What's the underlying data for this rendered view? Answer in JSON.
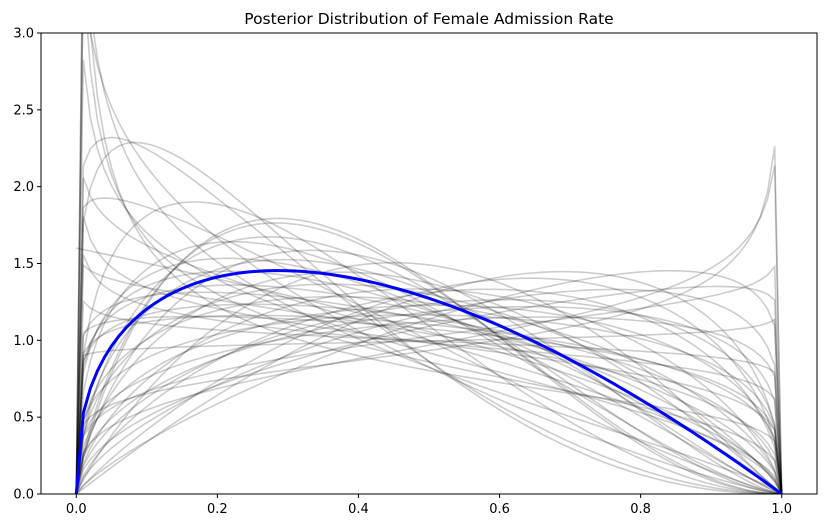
{
  "chart_data": {
    "type": "line",
    "title": "Posterior Distribution of Female Admission Rate",
    "xlabel": "",
    "ylabel": "",
    "xlim": [
      -0.05,
      1.05
    ],
    "ylim": [
      0,
      3
    ],
    "x_ticks": [
      0.0,
      0.2,
      0.4,
      0.6,
      0.8,
      1.0
    ],
    "x_tick_labels": [
      "0.0",
      "0.2",
      "0.4",
      "0.6",
      "0.8",
      "1.0"
    ],
    "y_ticks": [
      0.0,
      0.5,
      1.0,
      1.5,
      2.0,
      2.5,
      3.0
    ],
    "y_tick_labels": [
      "0.0",
      "0.5",
      "1.0",
      "1.5",
      "2.0",
      "2.5",
      "3.0"
    ],
    "grid": false,
    "legend": "none",
    "colors": {
      "samples": "#000000",
      "mean": "#0000ff"
    },
    "mean_curve": {
      "distribution": "beta",
      "a": 1.4,
      "b": 2.0
    },
    "sample_curves": [
      {
        "a": 0.62,
        "b": 1.15
      },
      {
        "a": 0.7,
        "b": 1.3
      },
      {
        "a": 0.8,
        "b": 1.5
      },
      {
        "a": 0.75,
        "b": 1.8
      },
      {
        "a": 0.85,
        "b": 2.2
      },
      {
        "a": 0.9,
        "b": 1.1
      },
      {
        "a": 0.95,
        "b": 1.05
      },
      {
        "a": 0.97,
        "b": 1.35
      },
      {
        "a": 1.0,
        "b": 1.6
      },
      {
        "a": 1.05,
        "b": 2.2
      },
      {
        "a": 1.1,
        "b": 1.3
      },
      {
        "a": 1.15,
        "b": 1.45
      },
      {
        "a": 1.2,
        "b": 1.7
      },
      {
        "a": 1.25,
        "b": 1.9
      },
      {
        "a": 1.3,
        "b": 2.1
      },
      {
        "a": 1.35,
        "b": 1.6
      },
      {
        "a": 1.4,
        "b": 2.4
      },
      {
        "a": 1.45,
        "b": 1.8
      },
      {
        "a": 1.5,
        "b": 2.2
      },
      {
        "a": 1.6,
        "b": 2.6
      },
      {
        "a": 1.7,
        "b": 2.4
      },
      {
        "a": 1.8,
        "b": 3.0
      },
      {
        "a": 1.2,
        "b": 3.2
      },
      {
        "a": 1.1,
        "b": 2.9
      },
      {
        "a": 1.3,
        "b": 1.15
      },
      {
        "a": 1.45,
        "b": 1.25
      },
      {
        "a": 1.55,
        "b": 1.35
      },
      {
        "a": 1.7,
        "b": 1.5
      },
      {
        "a": 1.65,
        "b": 1.2
      },
      {
        "a": 1.9,
        "b": 1.5
      },
      {
        "a": 2.0,
        "b": 1.45
      },
      {
        "a": 1.25,
        "b": 0.95
      },
      {
        "a": 1.15,
        "b": 0.8
      },
      {
        "a": 1.3,
        "b": 0.85
      },
      {
        "a": 1.5,
        "b": 1.05
      },
      {
        "a": 1.8,
        "b": 1.15
      },
      {
        "a": 1.6,
        "b": 2.0
      },
      {
        "a": 1.05,
        "b": 1.25
      },
      {
        "a": 0.92,
        "b": 1.6
      },
      {
        "a": 1.38,
        "b": 2.9
      },
      {
        "a": 1.9,
        "b": 2.1
      },
      {
        "a": 1.12,
        "b": 1.55
      },
      {
        "a": 0.88,
        "b": 1.2
      },
      {
        "a": 1.02,
        "b": 0.97
      },
      {
        "a": 1.75,
        "b": 2.9
      },
      {
        "a": 1.42,
        "b": 1.4
      },
      {
        "a": 1.28,
        "b": 1.3
      },
      {
        "a": 1.6,
        "b": 1.65
      }
    ]
  }
}
